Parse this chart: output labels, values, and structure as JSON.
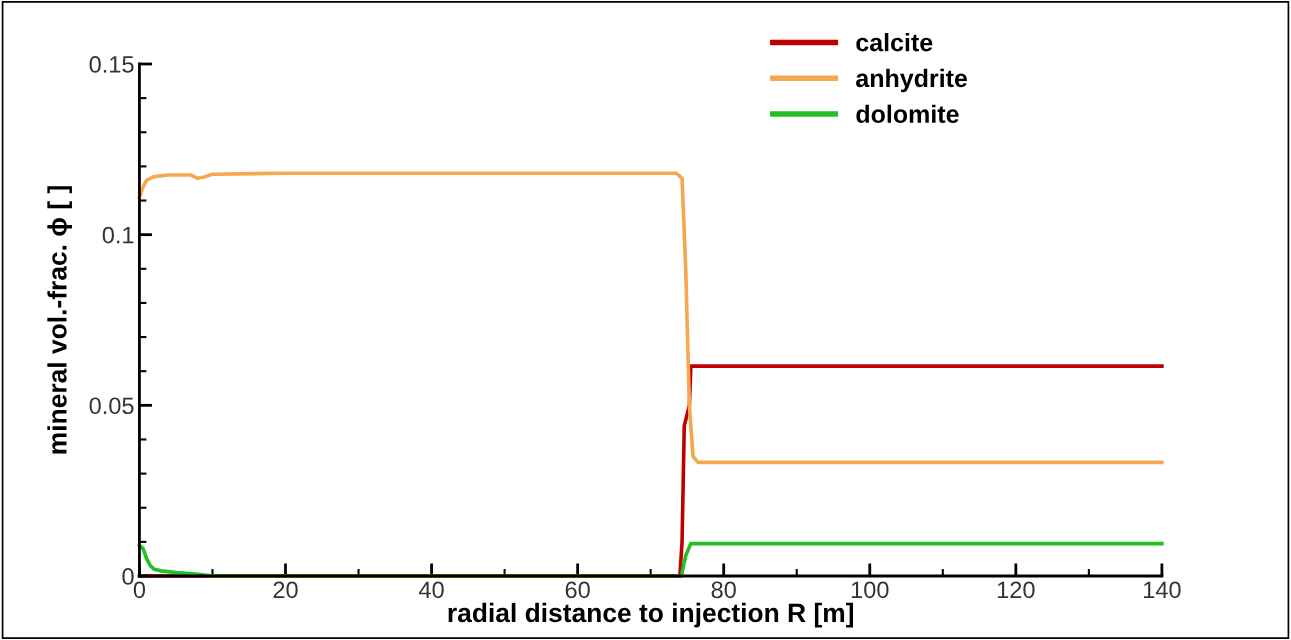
{
  "chart_data": {
    "type": "line",
    "xlabel": "radial distance to injection R [m]",
    "ylabel": "mineral vol.-frac. ϕ [ ]",
    "xlim": [
      0,
      140
    ],
    "ylim": [
      0,
      0.15
    ],
    "xticks": [
      0,
      20,
      40,
      60,
      80,
      100,
      120,
      140
    ],
    "yticks": [
      0,
      0.05,
      0.1,
      0.15
    ],
    "grid": false,
    "legend": "top right",
    "marker": "none",
    "line_style": "solid",
    "series": [
      {
        "name": "calcite",
        "color": "#c00000",
        "x": [
          0,
          74.0,
          74.3,
          74.6,
          75.3,
          75.5,
          76,
          140
        ],
        "values": [
          0,
          0,
          0.01,
          0.044,
          0.05,
          0.0615,
          0.0615,
          0.0615
        ]
      },
      {
        "name": "anhydrite",
        "color": "#f4a850",
        "x": [
          0,
          0.5,
          1,
          2,
          4,
          7,
          8,
          9,
          10,
          20,
          40,
          60,
          73.5,
          74.3,
          74.8,
          75.3,
          75.8,
          76.5,
          140
        ],
        "values": [
          0.111,
          0.114,
          0.116,
          0.117,
          0.1175,
          0.1175,
          0.1165,
          0.117,
          0.1177,
          0.118,
          0.118,
          0.118,
          0.118,
          0.1165,
          0.09,
          0.05,
          0.035,
          0.0333,
          0.0333
        ]
      },
      {
        "name": "dolomite",
        "color": "#22c022",
        "x": [
          0,
          0.5,
          1,
          1.5,
          2,
          3,
          5,
          8,
          10,
          74.2,
          74.8,
          75.5,
          76,
          140
        ],
        "values": [
          0.009,
          0.008,
          0.005,
          0.003,
          0.002,
          0.0015,
          0.001,
          0.0005,
          0,
          0,
          0.006,
          0.0095,
          0.0095,
          0.0095
        ]
      }
    ]
  }
}
